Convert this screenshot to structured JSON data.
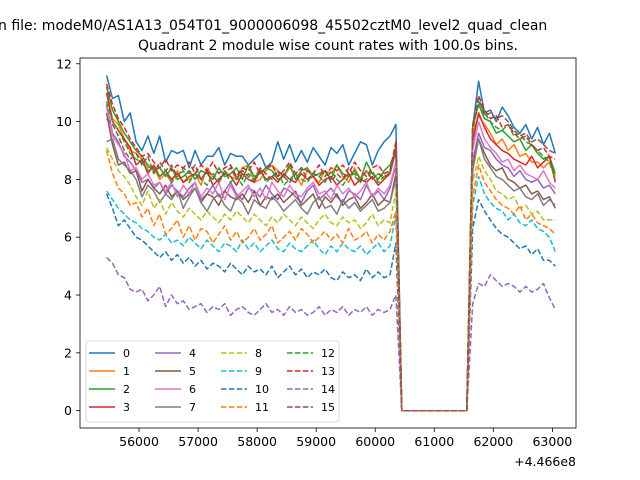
{
  "window_title": "n file: modeM0/AS1A13_054T01_9000006098_45502cztM0_level2_quad_clean",
  "chart_data": {
    "type": "line",
    "title": "Quadrant 2 module wise count rates with 100.0s bins.",
    "xlabel": "",
    "ylabel": "",
    "x_offset_label": "+4.466e8",
    "xlim": [
      55000,
      63400
    ],
    "ylim": [
      -0.6,
      12.2
    ],
    "x_ticks": [
      56000,
      57000,
      58000,
      59000,
      60000,
      61000,
      62000,
      63000
    ],
    "y_ticks": [
      0,
      2,
      4,
      6,
      8,
      10,
      12
    ],
    "grid": false,
    "legend_position": "lower-left",
    "series": [
      {
        "name": "0",
        "color": "#1f77b4",
        "dash": "solid"
      },
      {
        "name": "1",
        "color": "#ff7f0e",
        "dash": "solid"
      },
      {
        "name": "2",
        "color": "#2ca02c",
        "dash": "solid"
      },
      {
        "name": "3",
        "color": "#d62728",
        "dash": "solid"
      },
      {
        "name": "4",
        "color": "#9467bd",
        "dash": "solid"
      },
      {
        "name": "5",
        "color": "#8c564b",
        "dash": "solid"
      },
      {
        "name": "6",
        "color": "#e377c2",
        "dash": "solid"
      },
      {
        "name": "7",
        "color": "#7f7f7f",
        "dash": "solid"
      },
      {
        "name": "8",
        "color": "#bcbd22",
        "dash": "dashed"
      },
      {
        "name": "9",
        "color": "#17becf",
        "dash": "dashed"
      },
      {
        "name": "10",
        "color": "#1f77b4",
        "dash": "dashed"
      },
      {
        "name": "11",
        "color": "#ff7f0e",
        "dash": "dashed"
      },
      {
        "name": "12",
        "color": "#2ca02c",
        "dash": "dashed"
      },
      {
        "name": "13",
        "color": "#d62728",
        "dash": "dashed"
      },
      {
        "name": "14",
        "color": "#9467bd",
        "dash": "dashed"
      },
      {
        "name": "15",
        "color": "#8c564b",
        "dash": "dashed"
      }
    ],
    "x": [
      55450,
      55550,
      55650,
      55750,
      55850,
      55950,
      56050,
      56150,
      56250,
      56350,
      56450,
      56550,
      56650,
      56750,
      56850,
      56950,
      57050,
      57150,
      57250,
      57350,
      57450,
      57550,
      57650,
      57750,
      57850,
      57950,
      58050,
      58150,
      58250,
      58350,
      58450,
      58550,
      58650,
      58750,
      58850,
      58950,
      59050,
      59150,
      59250,
      59350,
      59450,
      59550,
      59650,
      59750,
      59850,
      59950,
      60050,
      60150,
      60250,
      60350,
      60450,
      60550,
      61550,
      61650,
      61750,
      61850,
      61950,
      62050,
      62150,
      62250,
      62350,
      62450,
      62550,
      62650,
      62750,
      62850,
      62950,
      63050
    ],
    "series_values": [
      [
        11.6,
        10.8,
        10.9,
        10.0,
        10.3,
        9.3,
        9.0,
        9.5,
        8.9,
        9.5,
        8.6,
        9.0,
        8.9,
        9.0,
        8.4,
        9.0,
        8.5,
        8.8,
        8.8,
        9.1,
        8.5,
        8.9,
        8.8,
        8.8,
        8.5,
        8.7,
        8.9,
        8.4,
        8.6,
        9.3,
        8.7,
        9.2,
        8.6,
        9.0,
        8.6,
        9.1,
        8.8,
        8.5,
        9.1,
        8.9,
        9.2,
        8.5,
        8.9,
        9.3,
        9.2,
        8.5,
        9.0,
        9.3,
        9.5,
        9.9,
        0.0,
        0.0,
        0.0,
        9.8,
        11.4,
        10.3,
        10.4,
        10.0,
        10.5,
        10.2,
        9.8,
        9.6,
        9.9,
        9.4,
        9.8,
        9.2,
        9.6,
        8.9
      ],
      [
        11.0,
        10.1,
        9.9,
        9.4,
        9.0,
        8.9,
        8.7,
        8.4,
        8.4,
        8.0,
        8.2,
        7.9,
        8.3,
        7.9,
        8.0,
        8.2,
        7.8,
        8.4,
        8.1,
        7.9,
        8.3,
        8.1,
        8.0,
        8.4,
        8.5,
        7.9,
        8.0,
        8.3,
        8.5,
        8.3,
        8.1,
        8.4,
        8.2,
        7.8,
        8.3,
        8.1,
        7.9,
        8.3,
        8.2,
        8.5,
        8.1,
        7.9,
        8.4,
        8.0,
        8.3,
        8.0,
        8.2,
        8.0,
        8.3,
        9.1,
        0.0,
        0.0,
        0.0,
        9.6,
        10.2,
        9.9,
        9.6,
        9.2,
        9.4,
        9.0,
        9.2,
        8.8,
        8.9,
        8.6,
        8.6,
        8.4,
        8.6,
        8.1
      ],
      [
        11.2,
        10.4,
        10.0,
        9.6,
        9.3,
        9.0,
        8.8,
        8.5,
        8.3,
        8.4,
        8.1,
        8.4,
        8.0,
        8.1,
        8.3,
        8.0,
        8.3,
        8.2,
        8.0,
        8.4,
        8.1,
        8.2,
        8.4,
        8.0,
        8.5,
        8.1,
        8.2,
        8.4,
        8.3,
        8.0,
        8.1,
        8.5,
        8.0,
        8.3,
        8.4,
        8.1,
        8.2,
        8.3,
        8.0,
        8.5,
        8.2,
        8.1,
        8.3,
        8.0,
        8.6,
        8.2,
        8.0,
        8.3,
        8.5,
        9.0,
        0.0,
        0.0,
        0.0,
        9.8,
        10.6,
        10.1,
        10.0,
        9.6,
        9.7,
        9.5,
        9.3,
        9.4,
        9.0,
        9.2,
        8.9,
        8.7,
        8.8,
        8.2
      ],
      [
        11.0,
        10.0,
        9.7,
        9.4,
        9.1,
        8.5,
        8.7,
        8.2,
        8.5,
        8.1,
        8.3,
        8.0,
        8.2,
        7.9,
        8.1,
        8.2,
        8.0,
        8.3,
        7.8,
        8.0,
        8.2,
        8.1,
        7.8,
        8.2,
        8.0,
        7.9,
        8.3,
        8.0,
        8.1,
        7.9,
        8.2,
        8.0,
        7.9,
        8.2,
        8.0,
        8.1,
        7.8,
        8.0,
        8.1,
        7.8,
        8.0,
        8.2,
        7.8,
        8.0,
        7.9,
        8.1,
        7.8,
        8.0,
        8.2,
        9.0,
        0.0,
        0.0,
        0.0,
        9.3,
        10.3,
        9.8,
        9.4,
        9.2,
        9.0,
        8.9,
        8.7,
        8.6,
        8.5,
        8.8,
        8.4,
        8.6,
        8.8,
        7.9
      ],
      [
        10.6,
        9.6,
        9.3,
        8.8,
        8.6,
        8.3,
        7.9,
        8.0,
        7.7,
        7.9,
        7.5,
        7.8,
        7.6,
        7.4,
        7.7,
        7.9,
        7.3,
        7.5,
        7.8,
        7.4,
        7.6,
        7.9,
        7.5,
        7.3,
        7.7,
        7.6,
        7.4,
        7.8,
        7.5,
        7.3,
        7.7,
        7.6,
        7.4,
        7.2,
        7.6,
        7.8,
        7.3,
        7.5,
        7.7,
        7.4,
        7.2,
        7.6,
        7.5,
        7.3,
        7.8,
        7.4,
        7.6,
        7.3,
        7.7,
        8.5,
        0.0,
        0.0,
        0.0,
        8.6,
        9.6,
        9.1,
        9.0,
        8.7,
        8.5,
        8.4,
        8.1,
        8.3,
        8.0,
        7.9,
        8.0,
        7.7,
        7.8,
        7.5
      ],
      [
        10.3,
        9.2,
        8.5,
        8.6,
        8.2,
        8.3,
        7.6,
        8.0,
        7.7,
        7.5,
        7.8,
        7.4,
        7.6,
        7.3,
        7.5,
        7.7,
        7.2,
        7.5,
        7.4,
        7.1,
        7.6,
        7.4,
        7.3,
        7.5,
        7.2,
        7.6,
        7.1,
        7.4,
        7.3,
        7.5,
        7.2,
        7.4,
        7.6,
        7.1,
        7.3,
        7.5,
        7.0,
        7.4,
        7.2,
        7.5,
        7.1,
        7.3,
        7.4,
        7.0,
        7.2,
        7.5,
        7.1,
        7.3,
        7.2,
        8.2,
        0.0,
        0.0,
        0.0,
        8.5,
        9.4,
        8.9,
        8.5,
        8.3,
        8.4,
        8.0,
        7.9,
        7.7,
        7.8,
        7.5,
        7.6,
        7.3,
        7.4,
        7.0
      ],
      [
        10.5,
        9.5,
        9.2,
        8.9,
        8.3,
        8.4,
        8.0,
        8.2,
        7.8,
        7.9,
        7.6,
        7.9,
        7.4,
        7.8,
        7.5,
        7.9,
        7.4,
        7.7,
        7.5,
        7.9,
        7.3,
        7.8,
        7.4,
        7.6,
        7.8,
        7.4,
        7.7,
        7.3,
        7.9,
        7.6,
        7.4,
        7.8,
        7.5,
        7.4,
        7.7,
        7.9,
        7.5,
        7.6,
        7.3,
        7.8,
        7.5,
        7.7,
        7.4,
        7.6,
        7.9,
        7.4,
        7.7,
        7.5,
        7.8,
        8.6,
        0.0,
        0.0,
        0.0,
        9.0,
        10.0,
        9.4,
        9.1,
        8.9,
        8.6,
        8.7,
        8.3,
        8.5,
        8.2,
        8.1,
        8.0,
        8.3,
        7.9,
        7.7
      ],
      [
        9.3,
        9.4,
        8.7,
        8.5,
        8.3,
        8.0,
        7.4,
        7.8,
        7.6,
        7.2,
        7.5,
        7.3,
        7.6,
        7.0,
        7.4,
        7.7,
        7.2,
        6.9,
        7.3,
        7.5,
        7.1,
        6.9,
        7.4,
        7.2,
        6.8,
        7.3,
        7.1,
        7.0,
        7.4,
        7.2,
        6.9,
        7.1,
        7.3,
        7.0,
        6.8,
        7.2,
        7.4,
        7.0,
        7.1,
        6.8,
        7.3,
        7.0,
        7.2,
        6.9,
        7.1,
        7.3,
        6.9,
        7.0,
        7.2,
        8.0,
        0.0,
        0.0,
        0.0,
        8.3,
        9.4,
        8.7,
        8.4,
        8.1,
        8.0,
        7.8,
        7.6,
        7.7,
        7.4,
        7.3,
        7.5,
        7.1,
        7.3,
        7.1
      ],
      [
        9.1,
        8.7,
        8.3,
        8.1,
        7.8,
        7.4,
        7.1,
        7.6,
        7.0,
        7.3,
        6.8,
        7.2,
        6.9,
        6.7,
        7.0,
        6.8,
        6.6,
        6.9,
        6.7,
        6.5,
        6.8,
        6.6,
        6.9,
        6.7,
        6.5,
        6.8,
        6.6,
        6.4,
        6.7,
        6.5,
        6.8,
        6.6,
        6.4,
        6.7,
        6.5,
        6.3,
        6.6,
        6.8,
        6.5,
        6.4,
        6.7,
        6.5,
        6.6,
        6.3,
        6.5,
        6.8,
        6.4,
        6.6,
        6.5,
        7.6,
        0.0,
        0.0,
        0.0,
        7.9,
        8.8,
        8.3,
        8.0,
        7.6,
        7.5,
        7.3,
        7.4,
        7.0,
        7.1,
        6.8,
        6.9,
        6.6,
        6.6,
        6.6
      ],
      [
        7.6,
        7.3,
        7.0,
        6.8,
        6.6,
        6.5,
        6.3,
        6.2,
        6.0,
        5.9,
        6.1,
        5.8,
        5.9,
        5.7,
        6.0,
        5.8,
        5.6,
        5.9,
        5.7,
        5.5,
        5.8,
        5.7,
        5.5,
        5.9,
        5.6,
        5.8,
        5.5,
        5.7,
        5.9,
        5.6,
        5.5,
        5.8,
        5.6,
        5.5,
        5.7,
        5.9,
        5.6,
        5.4,
        5.7,
        5.5,
        5.8,
        5.6,
        5.5,
        5.7,
        5.4,
        5.6,
        5.8,
        5.5,
        5.7,
        6.8,
        0.0,
        0.0,
        0.0,
        7.1,
        8.1,
        7.5,
        7.2,
        7.0,
        6.9,
        6.6,
        6.8,
        6.5,
        6.4,
        6.6,
        6.3,
        6.2,
        6.0,
        5.5
      ],
      [
        7.5,
        7.0,
        6.4,
        6.6,
        6.3,
        6.0,
        5.9,
        5.7,
        5.5,
        5.3,
        5.5,
        5.2,
        5.4,
        5.1,
        5.3,
        5.0,
        5.2,
        4.9,
        5.1,
        5.0,
        4.8,
        5.1,
        4.9,
        4.7,
        5.0,
        4.8,
        4.9,
        4.7,
        5.0,
        4.6,
        4.8,
        5.0,
        4.7,
        4.9,
        4.6,
        4.8,
        4.7,
        4.9,
        4.6,
        4.5,
        4.8,
        4.6,
        4.7,
        4.5,
        4.9,
        4.6,
        4.8,
        4.6,
        4.7,
        5.8,
        0.0,
        0.0,
        0.0,
        6.3,
        7.3,
        6.9,
        6.6,
        6.3,
        6.1,
        6.0,
        5.8,
        5.6,
        5.7,
        5.4,
        5.6,
        5.2,
        5.2,
        5.0
      ],
      [
        9.0,
        8.2,
        7.7,
        7.5,
        7.1,
        7.2,
        6.7,
        7.0,
        6.4,
        6.8,
        6.1,
        6.3,
        6.6,
        6.0,
        6.4,
        5.9,
        6.3,
        6.2,
        5.8,
        6.1,
        6.4,
        5.9,
        6.2,
        5.8,
        6.0,
        6.3,
        5.9,
        6.1,
        6.4,
        5.8,
        6.0,
        6.2,
        5.9,
        6.3,
        6.1,
        5.8,
        6.0,
        6.2,
        5.9,
        6.1,
        5.8,
        6.3,
        5.9,
        6.0,
        6.2,
        5.8,
        6.1,
        5.9,
        6.2,
        6.9,
        0.0,
        0.0,
        0.0,
        7.4,
        8.5,
        7.9,
        7.6,
        7.3,
        7.1,
        7.0,
        6.8,
        7.1,
        6.6,
        6.8,
        6.5,
        6.4,
        6.3,
        6.1
      ],
      [
        10.7,
        10.0,
        9.7,
        9.3,
        8.9,
        8.7,
        8.6,
        8.3,
        8.4,
        8.1,
        8.3,
        7.9,
        8.1,
        8.3,
        7.9,
        8.2,
        8.0,
        7.8,
        8.2,
        8.0,
        8.3,
        7.9,
        8.1,
        7.8,
        8.2,
        8.0,
        8.4,
        7.9,
        8.1,
        8.3,
        7.8,
        8.0,
        8.2,
        8.0,
        7.9,
        8.2,
        8.1,
        7.9,
        8.3,
        8.0,
        7.8,
        8.1,
        8.2,
        7.9,
        8.0,
        8.3,
        7.9,
        8.1,
        8.2,
        9.2,
        0.0,
        0.0,
        0.0,
        9.7,
        10.7,
        10.3,
        10.0,
        9.8,
        9.7,
        9.9,
        9.5,
        9.6,
        9.3,
        9.2,
        9.0,
        8.8,
        8.6,
        8.0
      ],
      [
        11.3,
        10.6,
        10.1,
        9.8,
        9.4,
        9.1,
        8.8,
        8.9,
        8.6,
        8.4,
        8.7,
        8.3,
        8.5,
        8.4,
        8.6,
        8.2,
        8.5,
        8.3,
        8.6,
        8.2,
        8.4,
        8.5,
        8.1,
        8.4,
        8.3,
        8.6,
        8.2,
        8.4,
        8.5,
        8.1,
        8.3,
        8.6,
        8.2,
        8.4,
        8.3,
        8.2,
        8.5,
        8.1,
        8.4,
        8.3,
        8.5,
        8.2,
        8.6,
        8.3,
        8.1,
        8.4,
        8.5,
        8.2,
        8.3,
        9.3,
        0.0,
        0.0,
        0.0,
        9.9,
        10.9,
        10.4,
        10.1,
        10.2,
        9.8,
        9.9,
        9.6,
        9.4,
        9.5,
        9.2,
        9.0,
        9.1,
        8.8,
        8.7
      ],
      [
        5.3,
        5.1,
        4.7,
        4.6,
        4.2,
        4.1,
        4.2,
        3.8,
        4.0,
        4.3,
        3.6,
        4.0,
        3.7,
        3.8,
        3.5,
        3.6,
        3.7,
        3.4,
        3.6,
        3.5,
        3.7,
        3.3,
        3.5,
        3.6,
        3.4,
        3.3,
        3.5,
        3.7,
        3.4,
        3.5,
        3.3,
        3.6,
        3.4,
        3.5,
        3.3,
        3.4,
        3.6,
        3.3,
        3.5,
        3.4,
        3.6,
        3.3,
        3.5,
        3.4,
        3.6,
        3.3,
        3.5,
        3.4,
        3.5,
        4.0,
        0.0,
        0.0,
        0.0,
        3.7,
        4.4,
        4.3,
        4.7,
        4.5,
        4.3,
        4.4,
        4.3,
        4.1,
        4.3,
        4.1,
        4.2,
        4.4,
        3.9,
        3.5
      ],
      [
        10.1,
        9.9,
        9.5,
        9.0,
        8.7,
        8.9,
        8.5,
        8.8,
        8.2,
        8.6,
        8.3,
        8.5,
        8.1,
        8.4,
        8.2,
        8.5,
        8.0,
        8.3,
        8.1,
        7.9,
        8.2,
        8.4,
        8.0,
        8.3,
        8.1,
        7.9,
        8.4,
        8.2,
        8.0,
        8.3,
        8.1,
        7.9,
        8.2,
        8.4,
        8.0,
        8.2,
        8.1,
        8.3,
        7.9,
        8.2,
        8.0,
        8.4,
        8.1,
        7.9,
        8.3,
        8.0,
        8.2,
        8.1,
        8.2,
        9.0,
        0.0,
        0.0,
        0.0,
        9.8,
        10.8,
        10.2,
        10.3,
        10.1,
        10.2,
        10.0,
        9.7,
        9.5,
        9.6,
        9.3,
        9.4,
        9.2,
        9.0,
        8.9
      ]
    ]
  }
}
